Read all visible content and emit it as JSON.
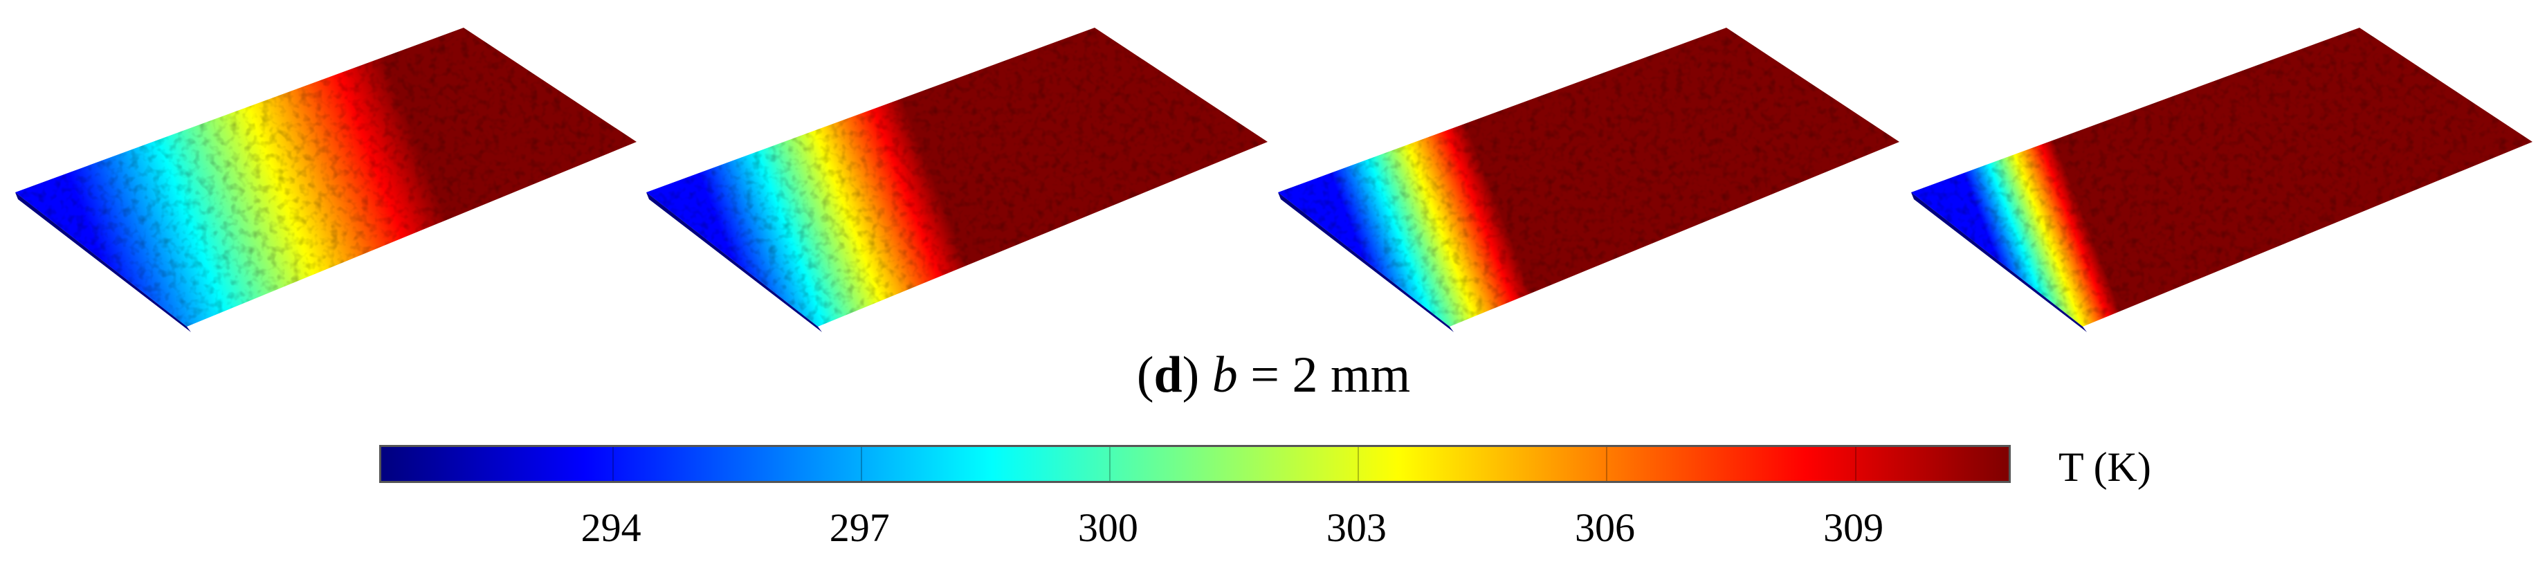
{
  "figure": {
    "caption_label": "d",
    "caption_var": "b",
    "caption_rest": " = 2 mm",
    "colorbar_unit": "T (K)",
    "colorbar_min": 291.2,
    "colorbar_max": 310.9,
    "ticks": [
      "294",
      "297",
      "300",
      "303",
      "306",
      "309"
    ],
    "tick_values": [
      294,
      297,
      300,
      303,
      306,
      309
    ],
    "colormap": [
      "#00007f",
      "#0000ff",
      "#007fff",
      "#00ffff",
      "#7fff7f",
      "#ffff00",
      "#ff7f00",
      "#ff0000",
      "#7f0000"
    ],
    "panels": [
      {
        "name": "surface-1",
        "front_temp": 294,
        "gradient_extent": 0.7
      },
      {
        "name": "surface-2",
        "front_temp": 294,
        "gradient_extent": 0.45
      },
      {
        "name": "surface-3",
        "front_temp": 294,
        "gradient_extent": 0.3
      },
      {
        "name": "surface-4",
        "front_temp": 294,
        "gradient_extent": 0.2
      }
    ]
  }
}
